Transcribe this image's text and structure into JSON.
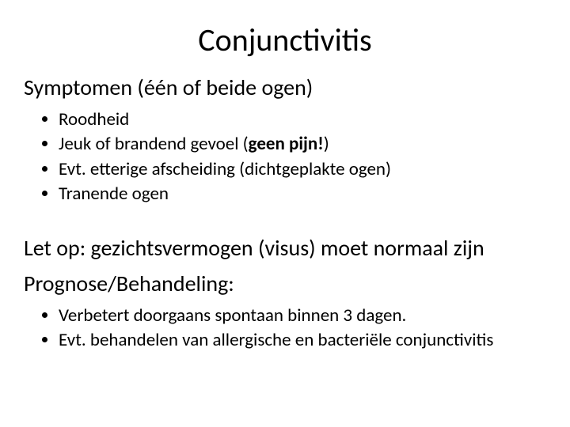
{
  "colors": {
    "background": "#ffffff",
    "text": "#000000"
  },
  "typography": {
    "title_fontsize": 40,
    "subhead_fontsize": 28,
    "body_fontsize": 23,
    "font_family": "Calibri"
  },
  "title": "Conjunctivitis",
  "section1": {
    "heading": "Symptomen (één of beide ogen)",
    "items": [
      {
        "text": "Roodheid"
      },
      {
        "prefix": "Jeuk of brandend gevoel (",
        "bold": "geen pijn!",
        "suffix": ")"
      },
      {
        "text": "Evt. etterige afscheiding (dichtgeplakte ogen)"
      },
      {
        "text": "Tranende ogen"
      }
    ]
  },
  "section2": {
    "heading_line1": "Let op: gezichtsvermogen (visus) moet normaal zijn",
    "heading_line2": "Prognose/Behandeling:",
    "items": [
      {
        "text": "Verbetert doorgaans spontaan binnen 3 dagen."
      },
      {
        "text": "Evt. behandelen van allergische en bacteriële conjunctivitis"
      }
    ]
  }
}
